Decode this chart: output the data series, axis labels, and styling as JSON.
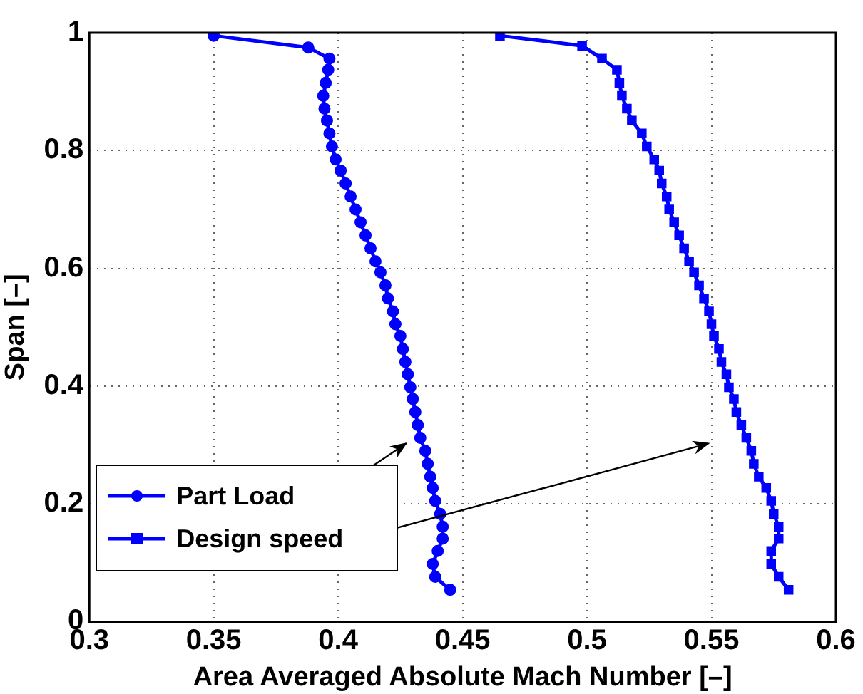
{
  "chart_data": {
    "type": "line",
    "xlabel": "Area Averaged Absolute Mach Number [–]",
    "ylabel": "Span [–]",
    "xlim": [
      0.3,
      0.6
    ],
    "xticks": [
      0.3,
      0.35,
      0.4,
      0.45,
      0.5,
      0.55,
      0.6
    ],
    "ylim": [
      0,
      1
    ],
    "yticks": [
      0,
      0.2,
      0.4,
      0.6,
      0.8,
      1
    ],
    "grid": true,
    "legend": "bottom left",
    "line_style": "solid",
    "series": [
      {
        "name": "Part Load",
        "color": "#0000ff",
        "marker": "circle",
        "x": [
          0.35,
          0.388,
          0.3965,
          0.396,
          0.395,
          0.394,
          0.3945,
          0.3955,
          0.3965,
          0.3975,
          0.399,
          0.401,
          0.403,
          0.405,
          0.407,
          0.409,
          0.411,
          0.413,
          0.415,
          0.417,
          0.419,
          0.42,
          0.422,
          0.423,
          0.425,
          0.426,
          0.427,
          0.428,
          0.429,
          0.43,
          0.431,
          0.432,
          0.433,
          0.435,
          0.436,
          0.437,
          0.438,
          0.439,
          0.441,
          0.442,
          0.442,
          0.44,
          0.438,
          0.439,
          0.445
        ],
        "values": [
          0.995,
          0.975,
          0.956,
          0.937,
          0.915,
          0.893,
          0.871,
          0.851,
          0.829,
          0.807,
          0.785,
          0.766,
          0.744,
          0.722,
          0.7,
          0.678,
          0.656,
          0.634,
          0.612,
          0.593,
          0.571,
          0.549,
          0.527,
          0.505,
          0.485,
          0.463,
          0.441,
          0.42,
          0.398,
          0.378,
          0.356,
          0.334,
          0.312,
          0.29,
          0.268,
          0.246,
          0.227,
          0.205,
          0.183,
          0.161,
          0.141,
          0.12,
          0.098,
          0.076,
          0.054
        ]
      },
      {
        "name": "Design speed",
        "color": "#0000ff",
        "marker": "square",
        "x": [
          0.465,
          0.498,
          0.506,
          0.512,
          0.513,
          0.514,
          0.516,
          0.518,
          0.522,
          0.524,
          0.527,
          0.529,
          0.53,
          0.532,
          0.533,
          0.535,
          0.537,
          0.539,
          0.541,
          0.543,
          0.545,
          0.547,
          0.549,
          0.55,
          0.551,
          0.553,
          0.554,
          0.556,
          0.557,
          0.559,
          0.56,
          0.562,
          0.564,
          0.566,
          0.567,
          0.569,
          0.572,
          0.574,
          0.575,
          0.577,
          0.577,
          0.574,
          0.574,
          0.577,
          0.581
        ],
        "values": [
          0.995,
          0.978,
          0.956,
          0.937,
          0.915,
          0.893,
          0.871,
          0.851,
          0.829,
          0.807,
          0.785,
          0.766,
          0.744,
          0.722,
          0.7,
          0.678,
          0.656,
          0.634,
          0.612,
          0.593,
          0.571,
          0.549,
          0.527,
          0.505,
          0.485,
          0.463,
          0.441,
          0.42,
          0.398,
          0.378,
          0.356,
          0.334,
          0.312,
          0.29,
          0.268,
          0.246,
          0.227,
          0.205,
          0.183,
          0.161,
          0.141,
          0.12,
          0.098,
          0.076,
          0.054
        ]
      }
    ]
  }
}
